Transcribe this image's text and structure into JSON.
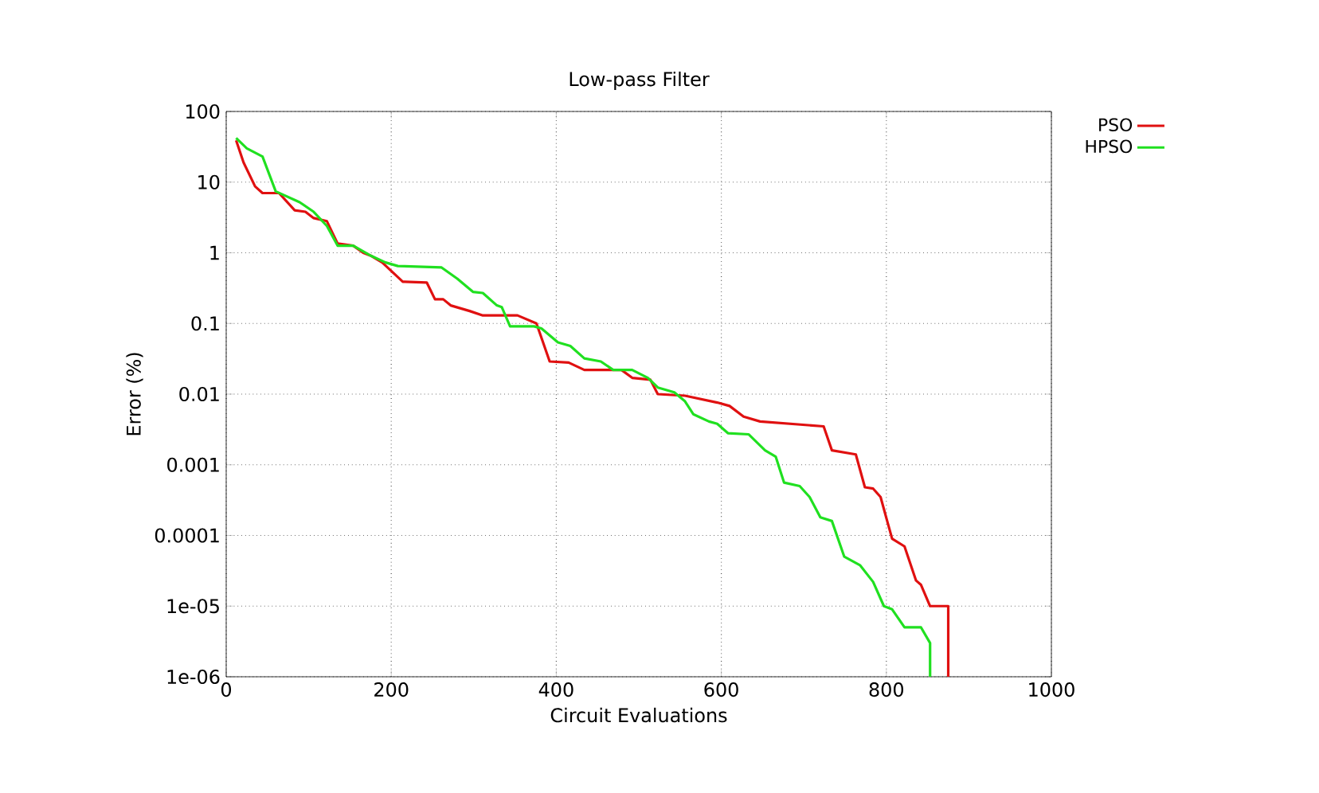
{
  "chart_data": {
    "type": "line",
    "title": "Low-pass Filter",
    "xlabel": "Circuit Evaluations",
    "ylabel": "Error (%)",
    "log": "y",
    "grid": true,
    "legend": "top right",
    "marker": "none",
    "line_style": "solid",
    "xlim": [
      0,
      1000
    ],
    "xticks": [
      0,
      200,
      400,
      600,
      800,
      1000
    ],
    "ylim": [
      1e-06,
      100
    ],
    "yticks": [
      100,
      10,
      1,
      0.1,
      0.01,
      0.001,
      0.0001,
      {
        "value": 1e-05,
        "label": "1e-05"
      },
      {
        "value": 1e-06,
        "label": "1e-06"
      }
    ],
    "series": [
      {
        "name": "PSO",
        "color": "#e01010",
        "x": [
          12,
          21,
          35,
          44,
          64,
          83,
          96,
          106,
          122,
          135,
          154,
          166,
          176,
          189,
          214,
          243,
          253,
          263,
          272,
          295,
          311,
          353,
          376,
          392,
          415,
          434,
          479,
          492,
          514,
          523,
          556,
          595,
          610,
          627,
          647,
          724,
          734,
          763,
          774,
          784,
          793,
          801,
          807,
          822,
          836,
          842,
          853,
          875,
          875
        ],
        "values": [
          39,
          19,
          8.7,
          7,
          7,
          4,
          3.8,
          3.1,
          2.8,
          1.35,
          1.26,
          1.0,
          0.9,
          0.73,
          0.39,
          0.38,
          0.22,
          0.22,
          0.18,
          0.15,
          0.13,
          0.13,
          0.1,
          0.029,
          0.028,
          0.022,
          0.022,
          0.017,
          0.016,
          0.01,
          0.0095,
          0.0076,
          0.0068,
          0.0048,
          0.0041,
          0.0035,
          0.0016,
          0.0014,
          0.00048,
          0.00046,
          0.00035,
          0.00016,
          9e-05,
          7e-05,
          2.3e-05,
          2e-05,
          1e-05,
          1e-05,
          1e-06
        ]
      },
      {
        "name": "HPSO",
        "color": "#20e020",
        "x": [
          12,
          25,
          44,
          60,
          89,
          106,
          122,
          135,
          154,
          176,
          193,
          208,
          261,
          280,
          299,
          311,
          328,
          334,
          344,
          373,
          382,
          402,
          417,
          434,
          454,
          469,
          492,
          511,
          523,
          543,
          556,
          566,
          585,
          595,
          608,
          633,
          653,
          666,
          676,
          695,
          707,
          720,
          734,
          749,
          768,
          784,
          797,
          807,
          822,
          842,
          853,
          853
        ],
        "values": [
          42,
          30,
          23,
          7.4,
          5.2,
          3.8,
          2.4,
          1.26,
          1.26,
          0.9,
          0.73,
          0.65,
          0.62,
          0.43,
          0.28,
          0.27,
          0.18,
          0.17,
          0.091,
          0.091,
          0.085,
          0.054,
          0.048,
          0.032,
          0.029,
          0.022,
          0.022,
          0.017,
          0.0124,
          0.0106,
          0.0079,
          0.0052,
          0.0041,
          0.0038,
          0.0028,
          0.0027,
          0.0016,
          0.0013,
          0.00056,
          0.0005,
          0.00035,
          0.00018,
          0.00016,
          5e-05,
          3.8e-05,
          2.2e-05,
          1e-05,
          9e-06,
          5e-06,
          5e-06,
          3e-06,
          1e-06
        ]
      }
    ]
  }
}
